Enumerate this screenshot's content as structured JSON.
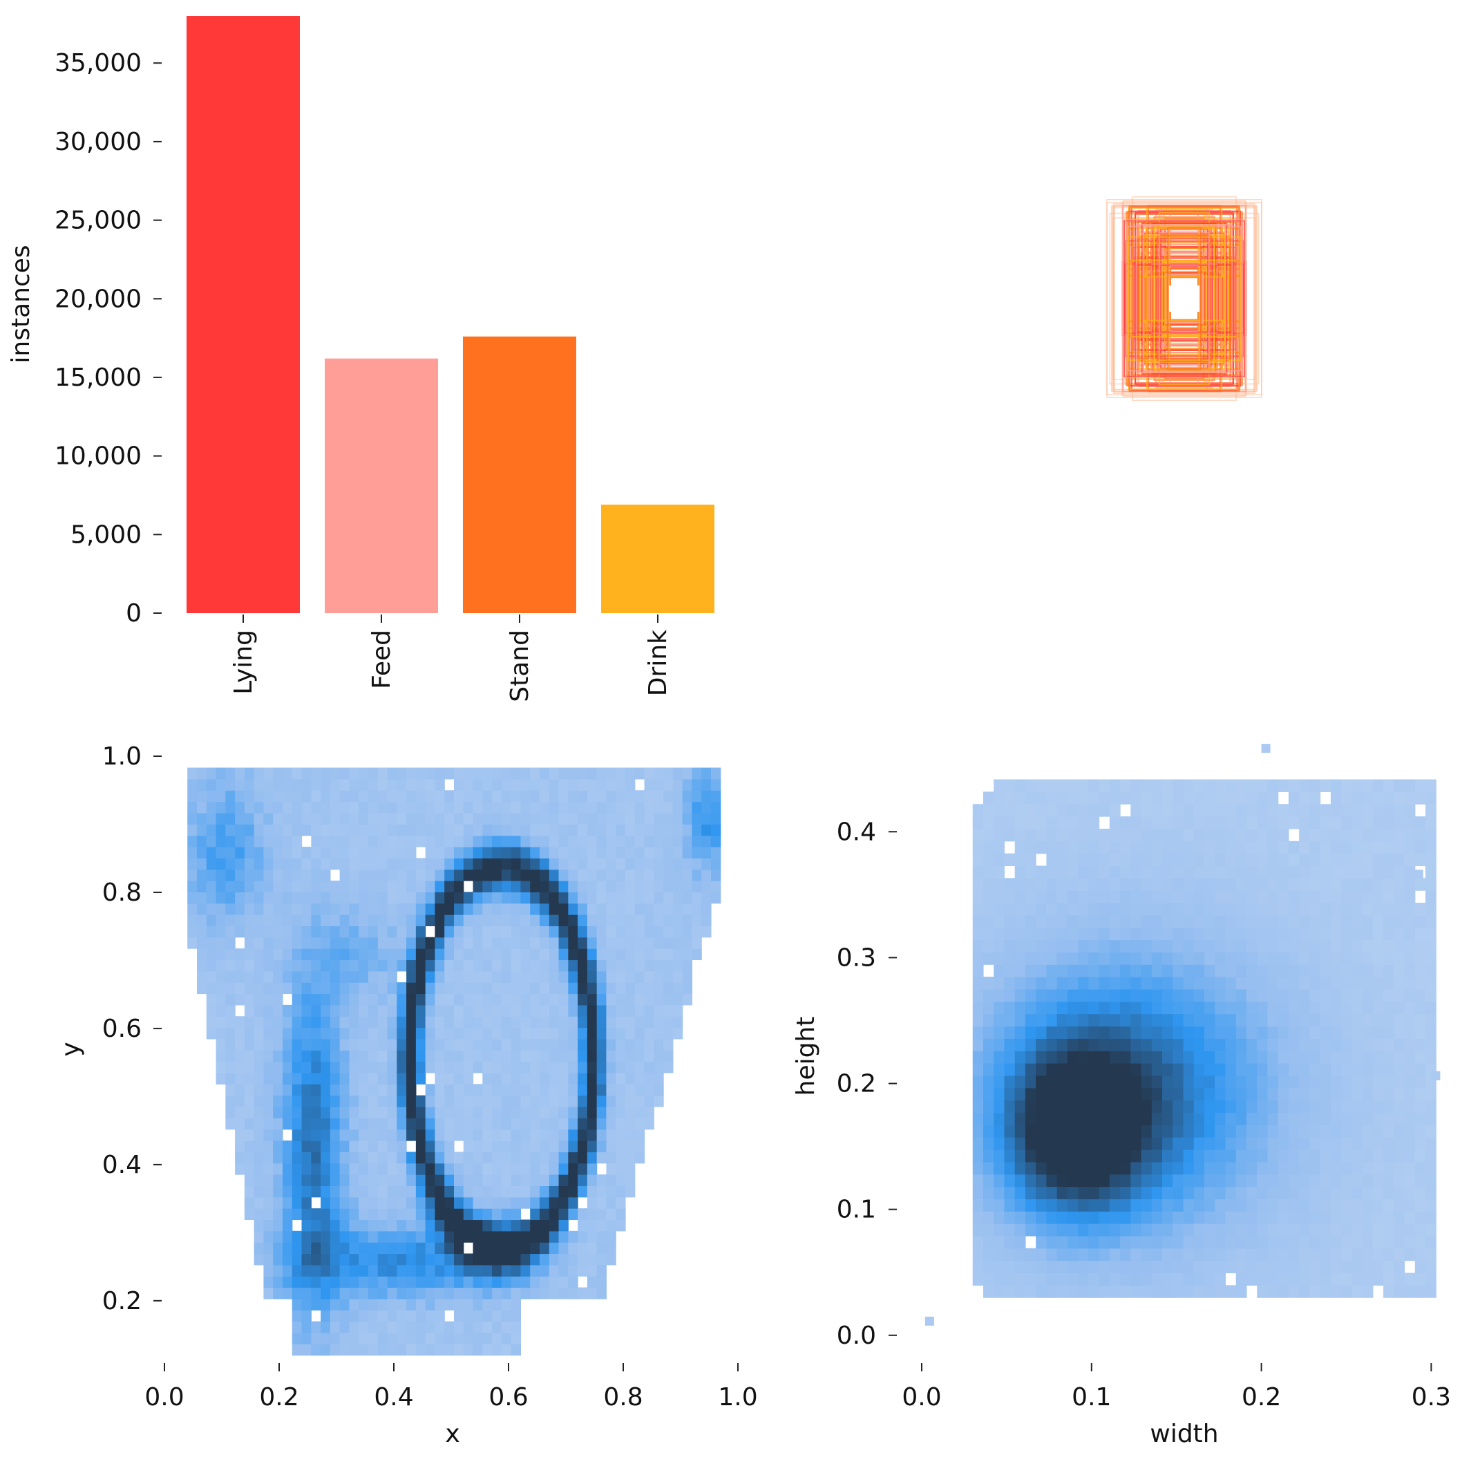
{
  "chart_data": [
    {
      "type": "bar",
      "ylabel": "instances",
      "categories": [
        "Lying",
        "Feed",
        "Stand",
        "Drink"
      ],
      "values": [
        38000,
        16200,
        17600,
        6900
      ],
      "colors": [
        "#ff3838",
        "#ff9d97",
        "#ff701f",
        "#ffb21d"
      ],
      "ylim": [
        0,
        38000
      ],
      "yticks": [
        0,
        5000,
        10000,
        15000,
        20000,
        25000,
        30000,
        35000
      ],
      "ytick_labels": [
        "0",
        "5,000",
        "10,000",
        "15,000",
        "20,000",
        "25,000",
        "30,000",
        "35,000"
      ],
      "grid": false
    },
    {
      "type": "box-overlay",
      "description_colors": [
        "#ff3838",
        "#ff701f",
        "#ff9d97",
        "#ffb21d"
      ],
      "note": "Overlay of bounding boxes centered at a common point (label rectangles)"
    },
    {
      "type": "heatmap",
      "xlabel": "x",
      "ylabel": "y",
      "xlim": [
        0.0,
        1.0
      ],
      "ylim": [
        0.08,
        1.0
      ],
      "xticks": [
        0.0,
        0.2,
        0.4,
        0.6,
        0.8,
        1.0
      ],
      "xtick_labels": [
        "0.0",
        "0.2",
        "0.4",
        "0.6",
        "0.8",
        "1.0"
      ],
      "yticks": [
        0.2,
        0.4,
        0.6,
        0.8,
        1.0
      ],
      "ytick_labels": [
        "0.2",
        "0.4",
        "0.6",
        "0.8",
        "1.0"
      ],
      "colormap": [
        "#ffffff",
        "#a8c8f0",
        "#2f96f0",
        "#24384f"
      ]
    },
    {
      "type": "heatmap",
      "xlabel": "width",
      "ylabel": "height",
      "xlim": [
        0.0,
        0.31
      ],
      "ylim": [
        -0.01,
        0.46
      ],
      "xticks": [
        0.0,
        0.1,
        0.2,
        0.3
      ],
      "xtick_labels": [
        "0.0",
        "0.1",
        "0.2",
        "0.3"
      ],
      "yticks": [
        0.0,
        0.1,
        0.2,
        0.3,
        0.4
      ],
      "ytick_labels": [
        "0.0",
        "0.1",
        "0.2",
        "0.3",
        "0.4"
      ],
      "colormap": [
        "#ffffff",
        "#a8c8f0",
        "#2f96f0",
        "#24384f"
      ]
    }
  ]
}
